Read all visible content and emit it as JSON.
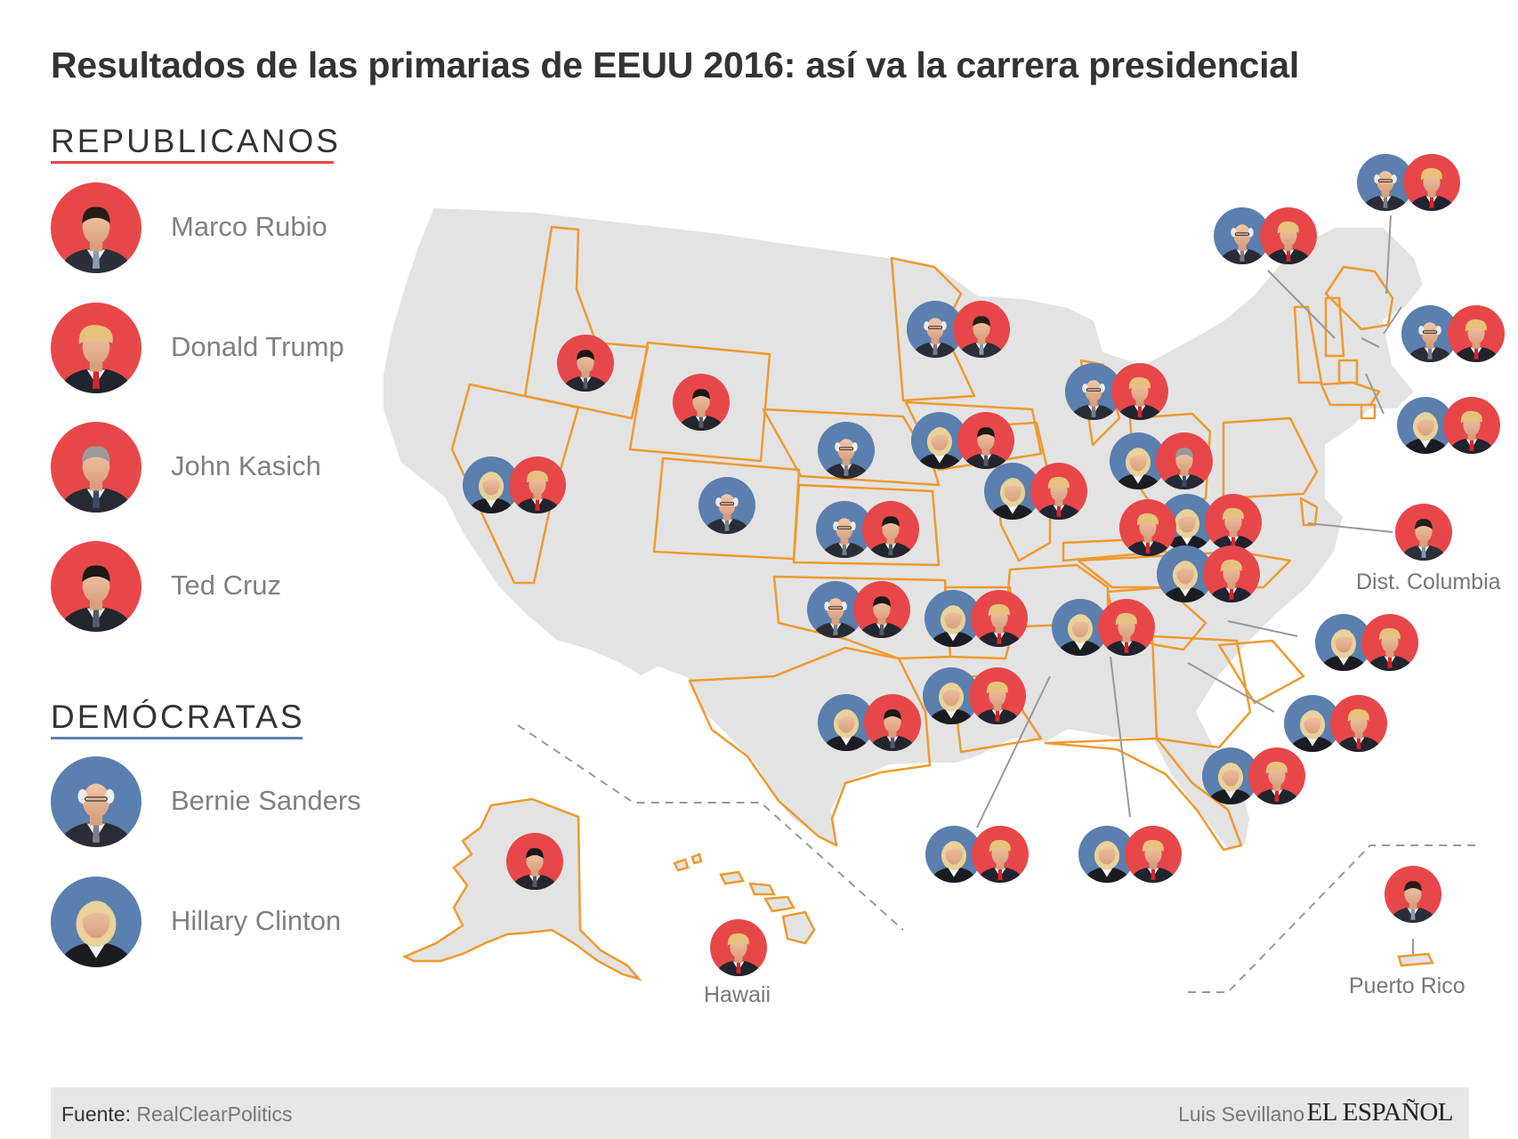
{
  "title": "Resultados de las primarias de EEUU 2016: así va la carrera presidencial",
  "legend": {
    "republicans": {
      "heading": "REPUBLICANOS",
      "candidates": [
        {
          "name": "Marco Rubio",
          "id": "rubio"
        },
        {
          "name": "Donald Trump",
          "id": "trump"
        },
        {
          "name": "John Kasich",
          "id": "kasich"
        },
        {
          "name": "Ted Cruz",
          "id": "cruz"
        }
      ]
    },
    "democrats": {
      "heading": "DEMÓCRATAS",
      "candidates": [
        {
          "name": "Bernie Sanders",
          "id": "sanders"
        },
        {
          "name": "Hillary Clinton",
          "id": "clinton"
        }
      ]
    }
  },
  "colors": {
    "republican": "#e8474a",
    "democrat": "#5b7fae",
    "state_fill": "#e3e3e3",
    "state_stroke": "#ffffff",
    "voted_stroke": "#ef9a2e"
  },
  "map_labels": {
    "dc": "Dist. Columbia",
    "hawaii": "Hawaii",
    "puerto_rico": "Puerto Rico"
  },
  "footer": {
    "source_label": "Fuente:",
    "source_value": "RealClearPolitics",
    "author": "Luis Sevillano",
    "publisher": "EL ESPAÑOL"
  }
}
